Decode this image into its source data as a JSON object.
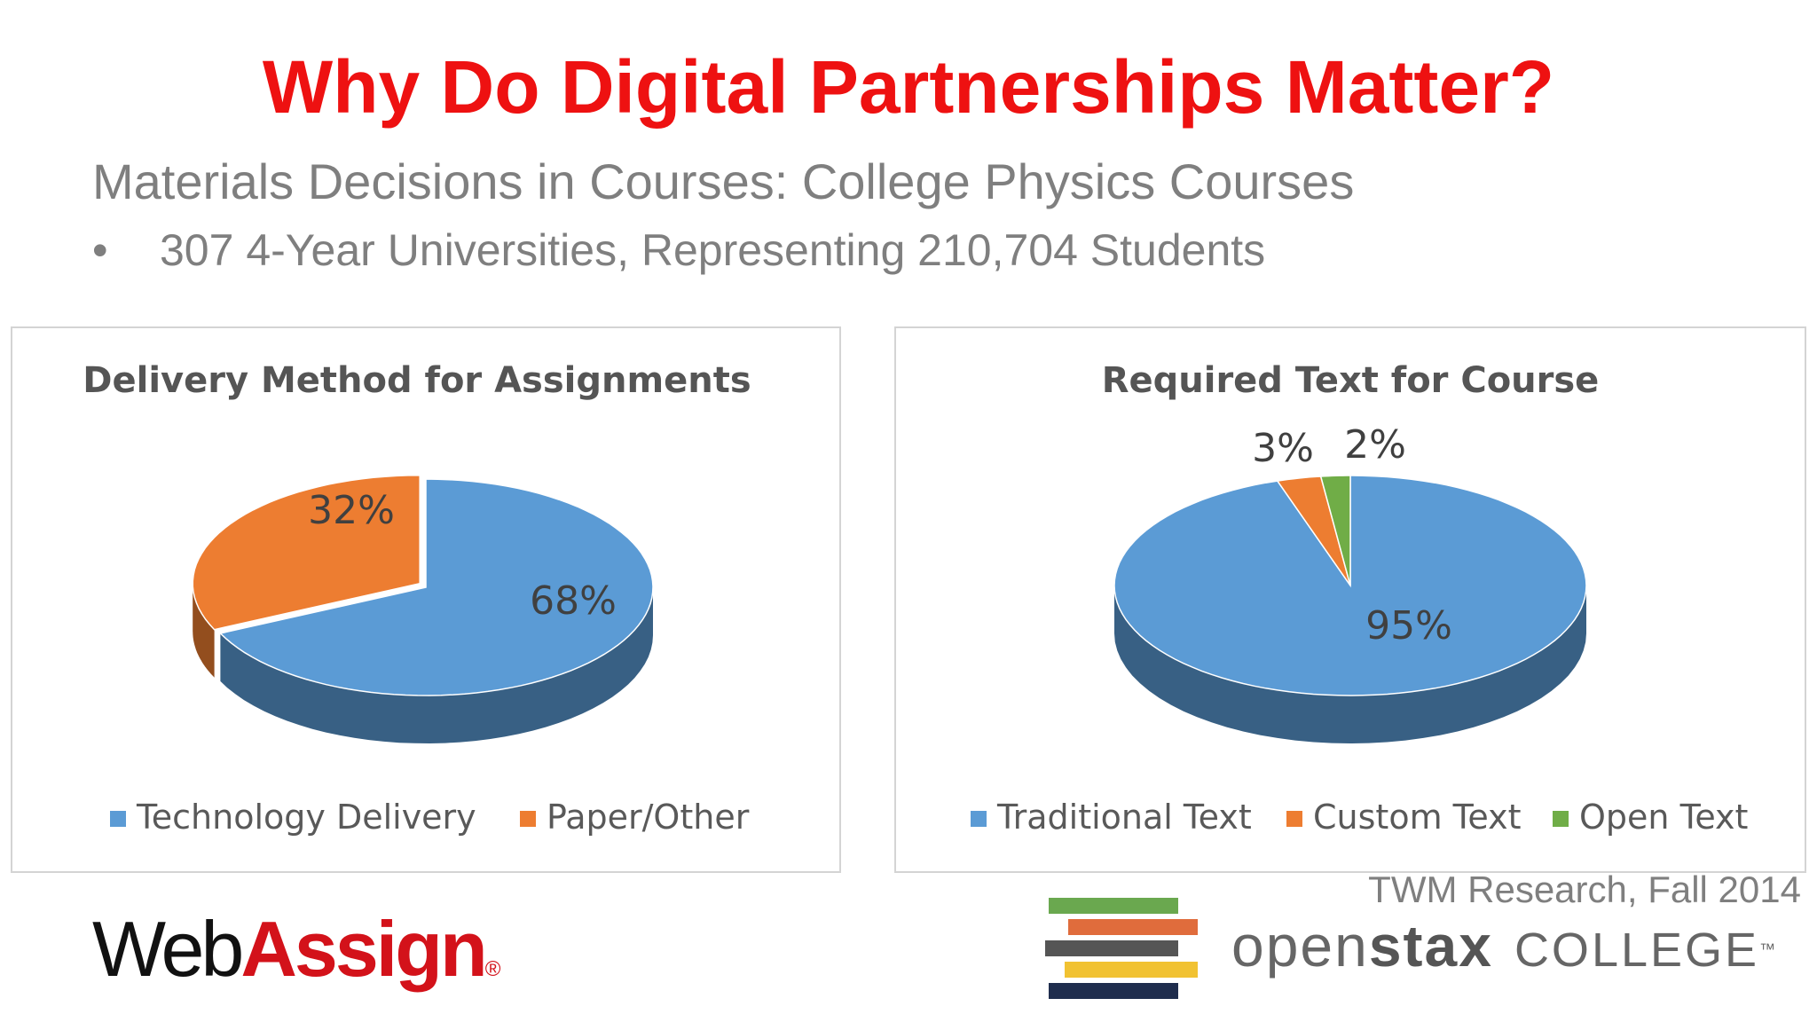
{
  "header": {
    "title": "Why Do Digital Partnerships Matter?",
    "title_color": "#ee1111",
    "subtitle": "Materials Decisions in Courses: College Physics Courses",
    "bullet_marker": "•",
    "bullet": "307 4-Year Universities, Representing 210,704 Students"
  },
  "chart_data": [
    {
      "type": "pie",
      "style": "3d",
      "title": "Delivery Method for Assignments",
      "categories": [
        "Technology Delivery",
        "Paper/Other"
      ],
      "values": [
        68,
        32
      ],
      "labels": [
        "68%",
        "32%"
      ],
      "colors": [
        "#5b9bd5",
        "#ed7d31"
      ],
      "legend": "bottom"
    },
    {
      "type": "pie",
      "style": "3d",
      "title": "Required Text for Course",
      "categories": [
        "Traditional Text",
        "Custom Text",
        "Open Text"
      ],
      "values": [
        95,
        3,
        2
      ],
      "labels": [
        "95%",
        "3%",
        "2%"
      ],
      "colors": [
        "#5b9bd5",
        "#ed7d31",
        "#70ad47"
      ],
      "legend": "bottom"
    }
  ],
  "source": "TWM Research, Fall 2014",
  "logos": {
    "webassign": {
      "web": "Web",
      "assign": "Assign",
      "reg": "®"
    },
    "openstax": {
      "open": "open",
      "stax": "stax",
      "college": "COLLEGE",
      "tm": "™",
      "bar_colors": [
        "#6aa84f",
        "#e06c3c",
        "#555555",
        "#f1c232",
        "#1f2d4d"
      ]
    }
  }
}
